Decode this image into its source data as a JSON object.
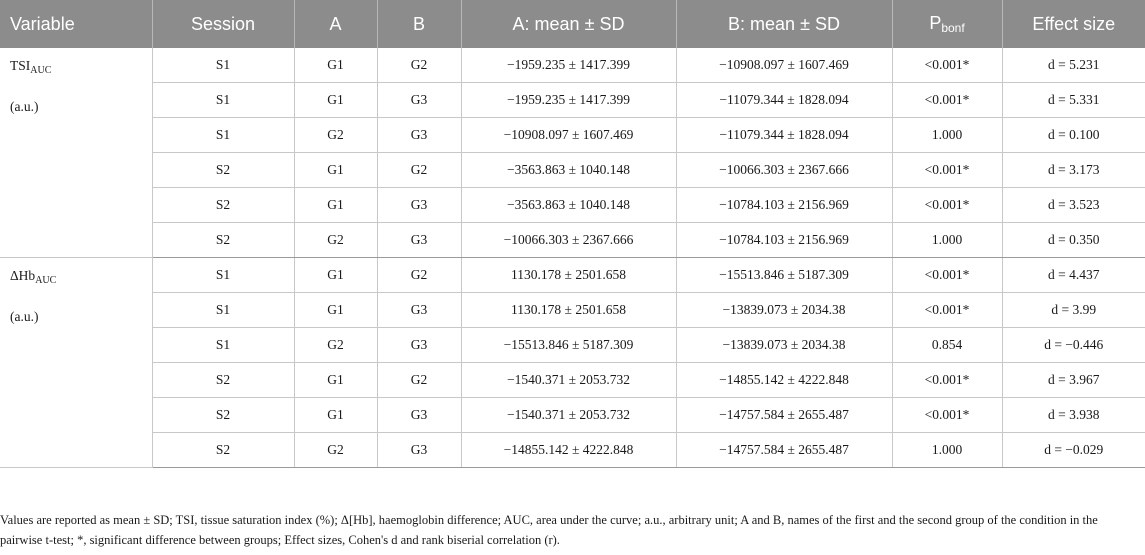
{
  "headers": {
    "variable": "Variable",
    "session": "Session",
    "a": "A",
    "b": "B",
    "a_mean": "A: mean ± SD",
    "b_mean": "B: mean ± SD",
    "p_main": "P",
    "p_sub": "bonf",
    "effect": "Effect size"
  },
  "groups": [
    {
      "var_main": "TSI",
      "var_sub": "AUC",
      "unit": "(a.u.)",
      "rows": [
        {
          "session": "S1",
          "a": "G1",
          "b": "G2",
          "a_mean": "−1959.235 ± 1417.399",
          "b_mean": "−10908.097 ± 1607.469",
          "p": "<0.001*",
          "effect": "d = 5.231"
        },
        {
          "session": "S1",
          "a": "G1",
          "b": "G3",
          "a_mean": "−1959.235 ± 1417.399",
          "b_mean": "−11079.344 ± 1828.094",
          "p": "<0.001*",
          "effect": "d = 5.331"
        },
        {
          "session": "S1",
          "a": "G2",
          "b": "G3",
          "a_mean": "−10908.097 ± 1607.469",
          "b_mean": "−11079.344 ± 1828.094",
          "p": "1.000",
          "effect": "d = 0.100"
        },
        {
          "session": "S2",
          "a": "G1",
          "b": "G2",
          "a_mean": "−3563.863 ± 1040.148",
          "b_mean": "−10066.303 ± 2367.666",
          "p": "<0.001*",
          "effect": "d = 3.173"
        },
        {
          "session": "S2",
          "a": "G1",
          "b": "G3",
          "a_mean": "−3563.863 ± 1040.148",
          "b_mean": "−10784.103 ± 2156.969",
          "p": "<0.001*",
          "effect": "d = 3.523"
        },
        {
          "session": "S2",
          "a": "G2",
          "b": "G3",
          "a_mean": "−10066.303 ± 2367.666",
          "b_mean": "−10784.103 ± 2156.969",
          "p": "1.000",
          "effect": "d = 0.350"
        }
      ]
    },
    {
      "var_main": "ΔHb",
      "var_sub": "AUC",
      "unit": "(a.u.)",
      "rows": [
        {
          "session": "S1",
          "a": "G1",
          "b": "G2",
          "a_mean": "1130.178 ± 2501.658",
          "b_mean": "−15513.846 ± 5187.309",
          "p": "<0.001*",
          "effect": "d = 4.437"
        },
        {
          "session": "S1",
          "a": "G1",
          "b": "G3",
          "a_mean": "1130.178 ± 2501.658",
          "b_mean": "−13839.073 ± 2034.38",
          "p": "<0.001*",
          "effect": "d = 3.99"
        },
        {
          "session": "S1",
          "a": "G2",
          "b": "G3",
          "a_mean": "−15513.846 ± 5187.309",
          "b_mean": "−13839.073 ± 2034.38",
          "p": "0.854",
          "effect": "d = −0.446"
        },
        {
          "session": "S2",
          "a": "G1",
          "b": "G2",
          "a_mean": "−1540.371 ± 2053.732",
          "b_mean": "−14855.142 ± 4222.848",
          "p": "<0.001*",
          "effect": "d = 3.967"
        },
        {
          "session": "S2",
          "a": "G1",
          "b": "G3",
          "a_mean": "−1540.371 ± 2053.732",
          "b_mean": "−14757.584 ± 2655.487",
          "p": "<0.001*",
          "effect": "d = 3.938"
        },
        {
          "session": "S2",
          "a": "G2",
          "b": "G3",
          "a_mean": "−14855.142 ± 4222.848",
          "b_mean": "−14757.584 ± 2655.487",
          "p": "1.000",
          "effect": "d = −0.029"
        }
      ]
    }
  ],
  "footnote": "Values are reported as mean ± SD; TSI, tissue saturation index (%); Δ[Hb], haemoglobin difference; AUC, area under the curve; a.u., arbitrary unit; A and B, names of the first and the second group of the condition in the pairwise t-test; *, significant difference between groups; Effect sizes, Cohen's d and rank biserial correlation (r)."
}
